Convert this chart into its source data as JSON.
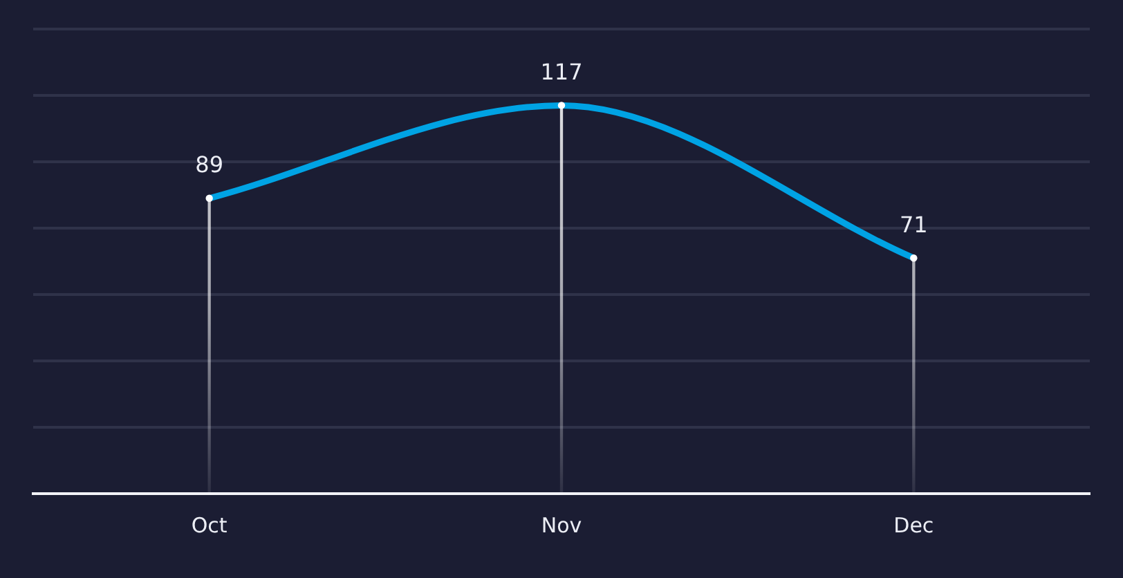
{
  "chart_data": {
    "type": "line",
    "categories": [
      "Oct",
      "Nov",
      "Dec"
    ],
    "series": [
      {
        "color": "#00a3e4",
        "values": [
          89,
          117,
          71
        ],
        "value_labels": [
          "89",
          "117",
          "71"
        ]
      },
      {
        "type": "lollipop",
        "color": "#ffffff",
        "values": [
          89,
          117,
          71
        ]
      }
    ],
    "ylim": [
      0,
      140
    ],
    "yticks": [
      {
        "value": 0,
        "label": null
      },
      {
        "value": 20,
        "label": null
      },
      {
        "value": 40,
        "label": null
      },
      {
        "value": 60,
        "label": null
      },
      {
        "value": 80,
        "label": null
      },
      {
        "value": 100,
        "label": null
      },
      {
        "value": 120,
        "label": null
      },
      {
        "value": 140,
        "label": null
      }
    ],
    "tick_labels": "x",
    "grid": "y"
  }
}
